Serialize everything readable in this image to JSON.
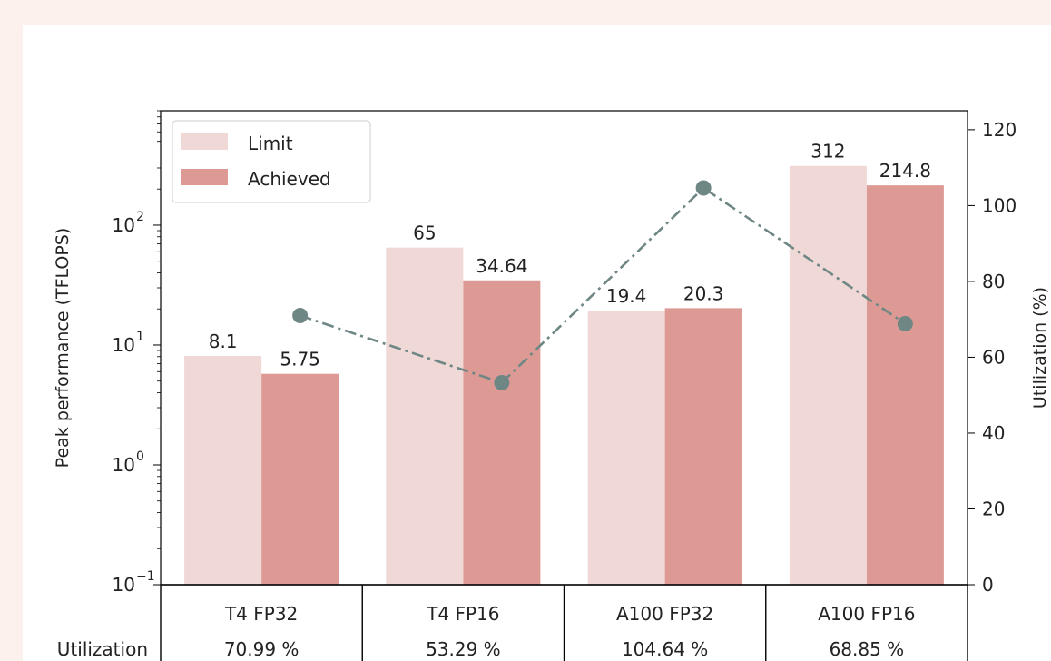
{
  "chart_data": {
    "type": "bar",
    "categories": [
      "T4 FP32",
      "T4 FP16",
      "A100 FP32",
      "A100 FP16"
    ],
    "series": [
      {
        "name": "Limit",
        "values": [
          8.1,
          65,
          19.4,
          312
        ],
        "labels": [
          "8.1",
          "65",
          "19.4",
          "312"
        ],
        "color": "#efd8d6"
      },
      {
        "name": "Achieved",
        "values": [
          5.75,
          34.64,
          20.3,
          214.8
        ],
        "labels": [
          "5.75",
          "34.64",
          "20.3",
          "214.8"
        ],
        "color": "#dd9a95"
      }
    ],
    "utilization": {
      "values": [
        70.99,
        53.29,
        104.64,
        68.85
      ],
      "labels": [
        "70.99 %",
        "53.29 %",
        "104.64 %",
        "68.85 %"
      ],
      "color": "#6e8785",
      "style": "dash-dot with circle markers"
    },
    "ylabel": "Peak performance (TFLOPS)",
    "y_scale": "log",
    "ylim": [
      0.1,
      900
    ],
    "y_ticks": [
      {
        "value": 0.1,
        "base": "10",
        "exp": "−1"
      },
      {
        "value": 1,
        "base": "10",
        "exp": "0"
      },
      {
        "value": 10,
        "base": "10",
        "exp": "1"
      },
      {
        "value": 100,
        "base": "10",
        "exp": "2"
      }
    ],
    "y2label": "Utilization (%)",
    "y2lim": [
      0,
      125
    ],
    "y2_ticks": [
      "0",
      "20",
      "40",
      "60",
      "80",
      "100",
      "120"
    ],
    "table_row_label": "Utilization",
    "legend_position": "upper-left",
    "grid": false
  }
}
